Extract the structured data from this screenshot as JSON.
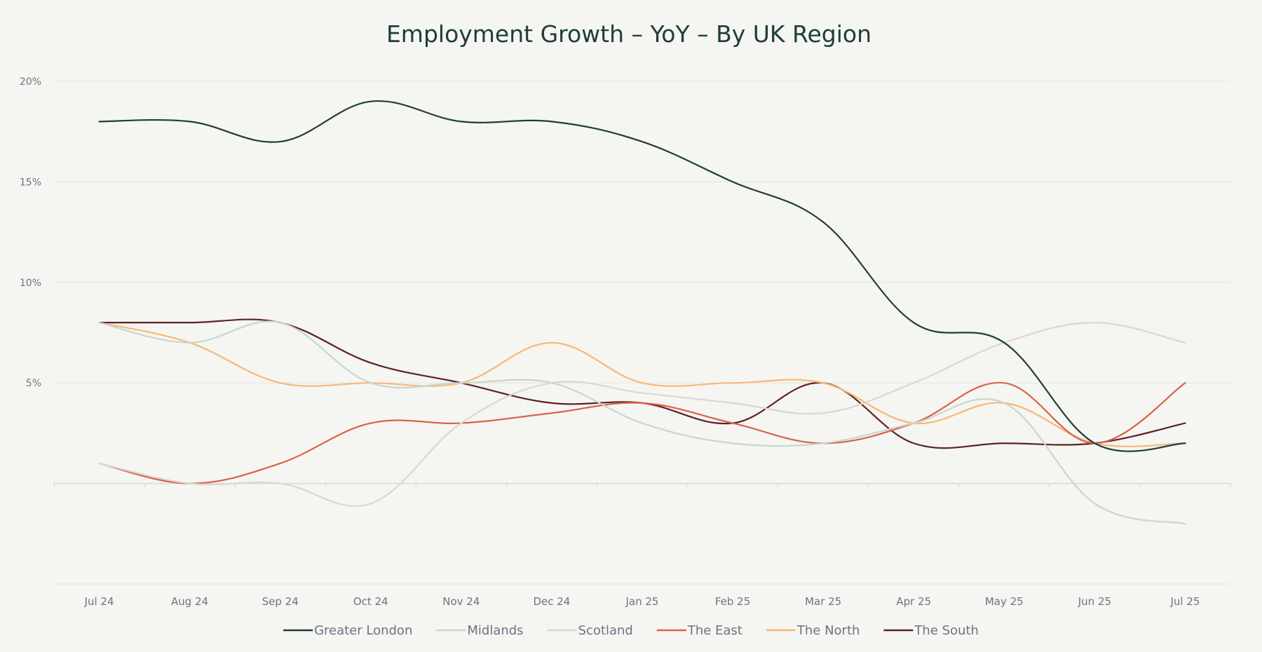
{
  "chart_data": {
    "type": "line",
    "title": "Employment Growth – YoY – By UK Region",
    "xlabel": "",
    "ylabel": "",
    "categories": [
      "Jul 24",
      "Aug 24",
      "Sep 24",
      "Oct 24",
      "Nov 24",
      "Dec 24",
      "Jan 25",
      "Feb 25",
      "Mar 25",
      "Apr 25",
      "May 25",
      "Jun 25",
      "Jul 25"
    ],
    "ylim": [
      -5,
      20
    ],
    "yticks": [
      {
        "value": 20,
        "label": "20%"
      },
      {
        "value": 15,
        "label": "15%"
      },
      {
        "value": 10,
        "label": "10%"
      },
      {
        "value": 5,
        "label": "5%"
      },
      {
        "value": 0,
        "label": ""
      },
      {
        "value": -5,
        "label": ""
      }
    ],
    "grid": true,
    "smooth": true,
    "legend_position": "bottom-center",
    "series": [
      {
        "name": "Greater London",
        "color": "#1e3d3b",
        "values": [
          18,
          18,
          17,
          19,
          18,
          18,
          17,
          15,
          13,
          8,
          7,
          2,
          2
        ]
      },
      {
        "name": "Midlands",
        "color": "#c9d6cf",
        "values": [
          8,
          7,
          8,
          5,
          5,
          5,
          3,
          2,
          2,
          3,
          4,
          -1,
          -2
        ]
      },
      {
        "name": "Scotland",
        "color": "#ddd6d3",
        "values": [
          1,
          0,
          0,
          -1,
          3,
          5,
          4.5,
          4,
          3.5,
          5,
          7,
          8,
          7
        ]
      },
      {
        "name": "The East",
        "color": "#d9624a",
        "values": [
          1,
          0,
          1,
          3,
          3,
          3.5,
          4,
          3,
          2,
          3,
          5,
          2,
          5
        ]
      },
      {
        "name": "The North",
        "color": "#f7b877",
        "values": [
          8,
          7,
          5,
          5,
          5,
          7,
          5,
          5,
          5,
          3,
          4,
          2,
          2
        ]
      },
      {
        "name": "The South",
        "color": "#5e2127",
        "values": [
          8,
          8,
          8,
          6,
          5,
          4,
          4,
          3,
          5,
          2,
          2,
          2,
          3
        ]
      }
    ]
  }
}
